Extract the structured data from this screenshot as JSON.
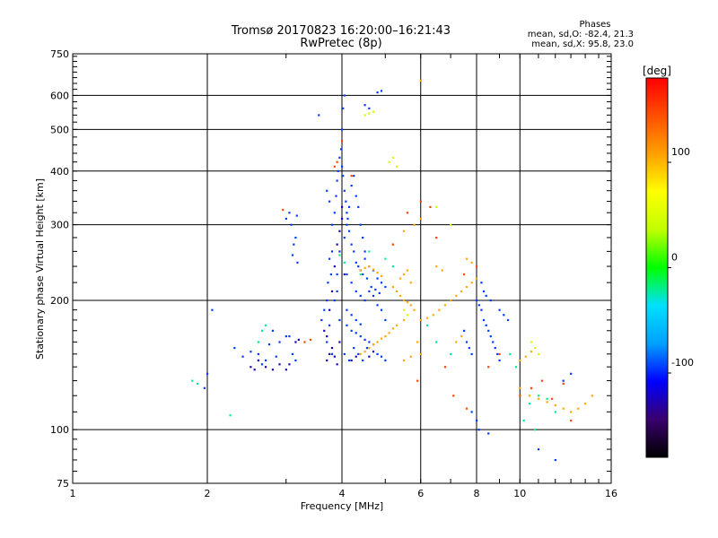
{
  "header": {
    "title_line1": "Tromsø 20170823 16:20:00–16:21:43",
    "title_line2": "RwPretec (8p)"
  },
  "phase_box": {
    "heading": "Phases",
    "line_o": "mean, sd,O:  -82.4, 21.3",
    "line_x": "mean, sd,X:  95.8, 23.0"
  },
  "chart_data": {
    "type": "scatter",
    "xlabel": "Frequency [MHz]",
    "ylabel": "Stationary phase Virtual Height [km]",
    "x_scale": "log",
    "y_scale": "log",
    "xlim": [
      1,
      16
    ],
    "ylim": [
      75,
      750
    ],
    "x_ticks": [
      1,
      2,
      4,
      6,
      8,
      10,
      16
    ],
    "y_ticks": [
      75,
      100,
      200,
      300,
      400,
      500,
      600,
      750
    ],
    "grid": true,
    "colorbar": {
      "label": "[deg]",
      "range": [
        -180,
        180
      ],
      "ticks": [
        -100,
        0,
        100
      ],
      "stops": [
        "#000000",
        "#3a006e",
        "#0000ff",
        "#00a0ff",
        "#00e0ff",
        "#00ff00",
        "#c0ff00",
        "#ffff00",
        "#ffa000",
        "#ff5000",
        "#ff0000"
      ]
    },
    "series": [
      {
        "phase_deg": -95,
        "points": [
          [
            1.97,
            125
          ],
          [
            2.0,
            135
          ],
          [
            2.05,
            190
          ],
          [
            2.3,
            155
          ],
          [
            2.4,
            148
          ],
          [
            2.5,
            152
          ],
          [
            2.6,
            150
          ],
          [
            2.7,
            145
          ],
          [
            2.8,
            170
          ],
          [
            2.9,
            160
          ],
          [
            2.65,
            142
          ],
          [
            2.75,
            158
          ],
          [
            2.85,
            148
          ],
          [
            3.0,
            165
          ],
          [
            3.05,
            165
          ],
          [
            3.1,
            150
          ],
          [
            3.1,
            255
          ],
          [
            3.12,
            270
          ],
          [
            3.15,
            280
          ],
          [
            3.18,
            245
          ],
          [
            3.0,
            310
          ],
          [
            3.05,
            320
          ],
          [
            3.08,
            300
          ],
          [
            3.15,
            145
          ],
          [
            3.17,
            315
          ],
          [
            3.6,
            180
          ],
          [
            3.65,
            190
          ],
          [
            3.7,
            200
          ],
          [
            3.72,
            220
          ],
          [
            3.75,
            250
          ],
          [
            3.78,
            230
          ],
          [
            3.8,
            260
          ],
          [
            3.8,
            300
          ],
          [
            3.85,
            320
          ],
          [
            3.88,
            350
          ],
          [
            3.9,
            380
          ],
          [
            3.92,
            400
          ],
          [
            3.95,
            430
          ],
          [
            3.98,
            450
          ],
          [
            4.0,
            500
          ],
          [
            4.02,
            560
          ],
          [
            4.05,
            600
          ],
          [
            3.7,
            160
          ],
          [
            3.75,
            175
          ],
          [
            3.8,
            150
          ],
          [
            3.85,
            200
          ],
          [
            3.9,
            210
          ],
          [
            3.95,
            180
          ],
          [
            3.9,
            230
          ],
          [
            3.95,
            260
          ],
          [
            4.05,
            280
          ],
          [
            4.1,
            300
          ],
          [
            4.15,
            330
          ],
          [
            4.2,
            370
          ],
          [
            4.25,
            390
          ],
          [
            4.3,
            350
          ],
          [
            4.35,
            330
          ],
          [
            4.4,
            300
          ],
          [
            4.45,
            280
          ],
          [
            4.5,
            260
          ],
          [
            4.1,
            230
          ],
          [
            4.2,
            220
          ],
          [
            4.3,
            210
          ],
          [
            4.4,
            205
          ],
          [
            4.5,
            200
          ],
          [
            4.6,
            210
          ],
          [
            4.7,
            205
          ],
          [
            4.8,
            195
          ],
          [
            4.9,
            190
          ],
          [
            5.0,
            180
          ],
          [
            4.1,
            175
          ],
          [
            4.2,
            170
          ],
          [
            4.3,
            168
          ],
          [
            4.4,
            165
          ],
          [
            4.5,
            162
          ],
          [
            4.6,
            160
          ],
          [
            4.7,
            158
          ],
          [
            4.8,
            150
          ],
          [
            4.9,
            148
          ],
          [
            5.0,
            145
          ],
          [
            4.05,
            150
          ],
          [
            4.15,
            145
          ],
          [
            4.25,
            155
          ],
          [
            4.35,
            150
          ],
          [
            4.45,
            145
          ],
          [
            4.55,
            155
          ],
          [
            4.1,
            190
          ],
          [
            4.2,
            185
          ],
          [
            4.3,
            180
          ],
          [
            4.4,
            176
          ],
          [
            4.5,
            250
          ],
          [
            4.6,
            240
          ],
          [
            4.7,
            235
          ],
          [
            4.8,
            225
          ],
          [
            4.9,
            220
          ],
          [
            5.0,
            215
          ],
          [
            4.5,
            570
          ],
          [
            4.6,
            560
          ],
          [
            4.9,
            615
          ],
          [
            4.8,
            610
          ],
          [
            3.55,
            540
          ],
          [
            3.7,
            360
          ],
          [
            3.75,
            340
          ],
          [
            4.0,
            410
          ],
          [
            4.02,
            390
          ],
          [
            4.05,
            360
          ],
          [
            4.08,
            340
          ],
          [
            4.1,
            320
          ],
          [
            4.12,
            310
          ],
          [
            4.15,
            290
          ],
          [
            4.2,
            270
          ],
          [
            4.25,
            260
          ],
          [
            4.3,
            245
          ],
          [
            4.35,
            240
          ],
          [
            4.4,
            235
          ],
          [
            4.45,
            230
          ],
          [
            4.55,
            225
          ],
          [
            4.65,
            215
          ],
          [
            4.75,
            212
          ],
          [
            4.85,
            208
          ],
          [
            7.5,
            170
          ],
          [
            7.6,
            160
          ],
          [
            7.7,
            155
          ],
          [
            7.8,
            150
          ],
          [
            8.0,
            200
          ],
          [
            8.1,
            195
          ],
          [
            8.2,
            190
          ],
          [
            8.3,
            180
          ],
          [
            8.4,
            175
          ],
          [
            8.5,
            170
          ],
          [
            8.6,
            165
          ],
          [
            8.7,
            160
          ],
          [
            8.8,
            155
          ],
          [
            8.9,
            150
          ],
          [
            9.0,
            145
          ],
          [
            8.2,
            220
          ],
          [
            8.3,
            210
          ],
          [
            8.4,
            205
          ],
          [
            8.6,
            200
          ],
          [
            9.0,
            190
          ],
          [
            9.2,
            185
          ],
          [
            9.4,
            180
          ],
          [
            7.8,
            110
          ],
          [
            8.0,
            105
          ],
          [
            8.1,
            100
          ],
          [
            8.5,
            98
          ],
          [
            11.0,
            90
          ],
          [
            12.0,
            85
          ],
          [
            12.5,
            130
          ],
          [
            13.0,
            135
          ]
        ]
      },
      {
        "phase_deg": -125,
        "points": [
          [
            3.65,
            170
          ],
          [
            3.7,
            165
          ],
          [
            3.75,
            190
          ],
          [
            3.8,
            210
          ],
          [
            3.85,
            240
          ],
          [
            3.9,
            270
          ],
          [
            3.95,
            290
          ],
          [
            4.0,
            310
          ],
          [
            4.0,
            330
          ],
          [
            4.05,
            230
          ],
          [
            3.7,
            145
          ],
          [
            3.75,
            150
          ],
          [
            3.8,
            155
          ],
          [
            3.85,
            148
          ],
          [
            3.9,
            142
          ],
          [
            3.95,
            160
          ],
          [
            2.5,
            140
          ],
          [
            2.55,
            138
          ],
          [
            2.6,
            145
          ],
          [
            2.7,
            140
          ],
          [
            2.8,
            138
          ],
          [
            2.9,
            142
          ],
          [
            3.0,
            138
          ],
          [
            3.05,
            142
          ],
          [
            3.15,
            160
          ],
          [
            3.2,
            162
          ],
          [
            4.2,
            145
          ],
          [
            4.3,
            148
          ],
          [
            4.6,
            148
          ],
          [
            4.7,
            152
          ]
        ]
      },
      {
        "phase_deg": -20,
        "points": [
          [
            1.85,
            130
          ],
          [
            1.9,
            128
          ],
          [
            2.25,
            108
          ],
          [
            2.6,
            160
          ],
          [
            2.65,
            170
          ],
          [
            2.7,
            175
          ],
          [
            3.95,
            255
          ],
          [
            4.05,
            245
          ],
          [
            4.4,
            230
          ],
          [
            4.6,
            260
          ],
          [
            5.0,
            250
          ],
          [
            5.2,
            240
          ],
          [
            5.3,
            210
          ],
          [
            6.2,
            175
          ],
          [
            6.5,
            160
          ],
          [
            7.0,
            150
          ],
          [
            9.5,
            150
          ],
          [
            9.8,
            140
          ],
          [
            10.5,
            115
          ],
          [
            11.0,
            120
          ],
          [
            11.5,
            118
          ],
          [
            12.0,
            110
          ],
          [
            10.2,
            105
          ],
          [
            10.8,
            100
          ]
        ]
      },
      {
        "phase_deg": 45,
        "points": [
          [
            4.5,
            540
          ],
          [
            4.6,
            545
          ],
          [
            4.7,
            550
          ],
          [
            5.1,
            420
          ],
          [
            5.2,
            430
          ],
          [
            5.3,
            410
          ],
          [
            6.5,
            330
          ],
          [
            7.0,
            300
          ],
          [
            10.6,
            160
          ],
          [
            10.8,
            155
          ],
          [
            11.0,
            150
          ],
          [
            5.5,
            190
          ],
          [
            5.6,
            185
          ]
        ]
      },
      {
        "phase_deg": 105,
        "points": [
          [
            4.4,
            235
          ],
          [
            4.5,
            238
          ],
          [
            4.6,
            240
          ],
          [
            4.7,
            236
          ],
          [
            4.8,
            232
          ],
          [
            4.9,
            228
          ],
          [
            5.2,
            215
          ],
          [
            5.3,
            210
          ],
          [
            5.4,
            205
          ],
          [
            5.5,
            200
          ],
          [
            5.6,
            198
          ],
          [
            5.7,
            195
          ],
          [
            5.8,
            190
          ],
          [
            5.4,
            225
          ],
          [
            5.5,
            230
          ],
          [
            5.6,
            235
          ],
          [
            5.7,
            220
          ],
          [
            4.4,
            150
          ],
          [
            4.5,
            152
          ],
          [
            4.6,
            155
          ],
          [
            4.7,
            158
          ],
          [
            4.8,
            160
          ],
          [
            4.9,
            163
          ],
          [
            5.0,
            165
          ],
          [
            5.1,
            168
          ],
          [
            5.2,
            172
          ],
          [
            5.3,
            175
          ],
          [
            5.5,
            180
          ],
          [
            6.0,
            180
          ],
          [
            6.2,
            182
          ],
          [
            6.4,
            185
          ],
          [
            6.6,
            190
          ],
          [
            6.8,
            195
          ],
          [
            7.0,
            200
          ],
          [
            7.2,
            205
          ],
          [
            7.4,
            210
          ],
          [
            7.6,
            215
          ],
          [
            7.8,
            220
          ],
          [
            6.5,
            240
          ],
          [
            6.7,
            235
          ],
          [
            7.6,
            250
          ],
          [
            7.8,
            245
          ],
          [
            8.0,
            225
          ],
          [
            5.2,
            270
          ],
          [
            5.5,
            290
          ],
          [
            5.8,
            300
          ],
          [
            6.0,
            310
          ],
          [
            10.0,
            125
          ],
          [
            10.5,
            120
          ],
          [
            11.0,
            118
          ],
          [
            11.5,
            116
          ],
          [
            12.0,
            114
          ],
          [
            12.5,
            112
          ],
          [
            13.0,
            110
          ],
          [
            13.5,
            112
          ],
          [
            14.0,
            115
          ],
          [
            14.5,
            120
          ],
          [
            10.0,
            145
          ],
          [
            10.3,
            148
          ],
          [
            10.6,
            152
          ],
          [
            5.5,
            145
          ],
          [
            5.7,
            148
          ],
          [
            6.0,
            150
          ],
          [
            7.2,
            160
          ],
          [
            7.4,
            165
          ],
          [
            6.0,
            650
          ],
          [
            5.9,
            160
          ]
        ]
      },
      {
        "phase_deg": 150,
        "points": [
          [
            3.85,
            410
          ],
          [
            3.9,
            420
          ],
          [
            4.0,
            470
          ],
          [
            4.2,
            390
          ],
          [
            5.2,
            270
          ],
          [
            5.6,
            320
          ],
          [
            6.0,
            340
          ],
          [
            6.3,
            330
          ],
          [
            6.5,
            280
          ],
          [
            7.5,
            230
          ],
          [
            8.0,
            240
          ],
          [
            8.5,
            140
          ],
          [
            9.0,
            150
          ],
          [
            10.0,
            120
          ],
          [
            10.6,
            125
          ],
          [
            11.2,
            130
          ],
          [
            11.8,
            118
          ],
          [
            12.5,
            128
          ],
          [
            13.0,
            105
          ],
          [
            3.3,
            160
          ],
          [
            3.4,
            162
          ],
          [
            2.95,
            325
          ],
          [
            5.9,
            130
          ],
          [
            6.8,
            140
          ],
          [
            7.1,
            120
          ],
          [
            7.6,
            112
          ]
        ]
      }
    ]
  }
}
